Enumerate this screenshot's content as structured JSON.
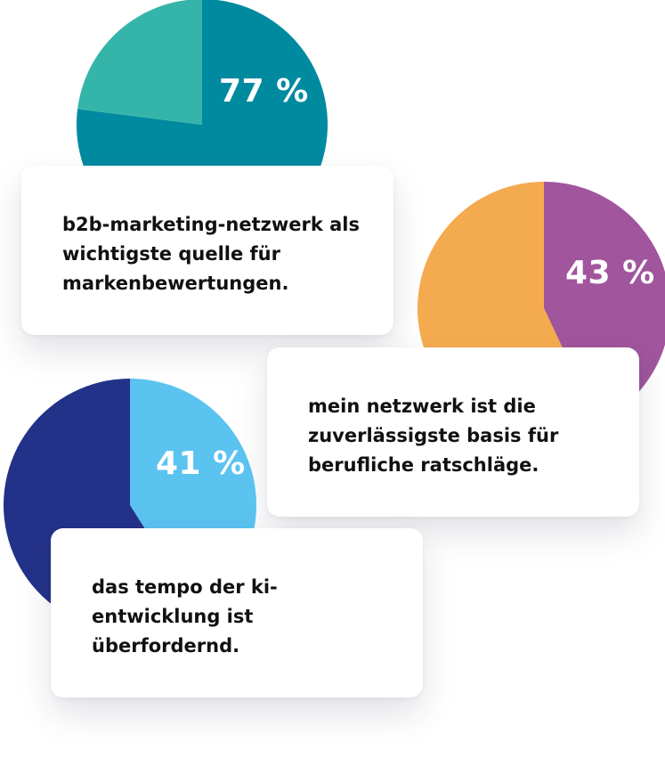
{
  "chart_data": [
    {
      "type": "pie",
      "categories": [
        "",
        ""
      ],
      "values": [
        77,
        23
      ],
      "data_label": "77 %",
      "caption": "b2b-marketing-netzwerk als wichtigste quelle für markenbewertungen.",
      "colors": [
        "#008aa0",
        "#35b5aa"
      ]
    },
    {
      "type": "pie",
      "categories": [
        "",
        ""
      ],
      "values": [
        43,
        57
      ],
      "data_label": "43 %",
      "caption": "mein netzwerk ist die zuverlässigste basis für berufliche ratschläge.",
      "colors": [
        "#a0559c",
        "#f4aa4e"
      ]
    },
    {
      "type": "pie",
      "categories": [
        "",
        ""
      ],
      "values": [
        41,
        59
      ],
      "data_label": "41 %",
      "caption": "das tempo der ki-entwicklung ist überfordernd.",
      "colors": [
        "#5bc3f0",
        "#233289"
      ]
    }
  ]
}
